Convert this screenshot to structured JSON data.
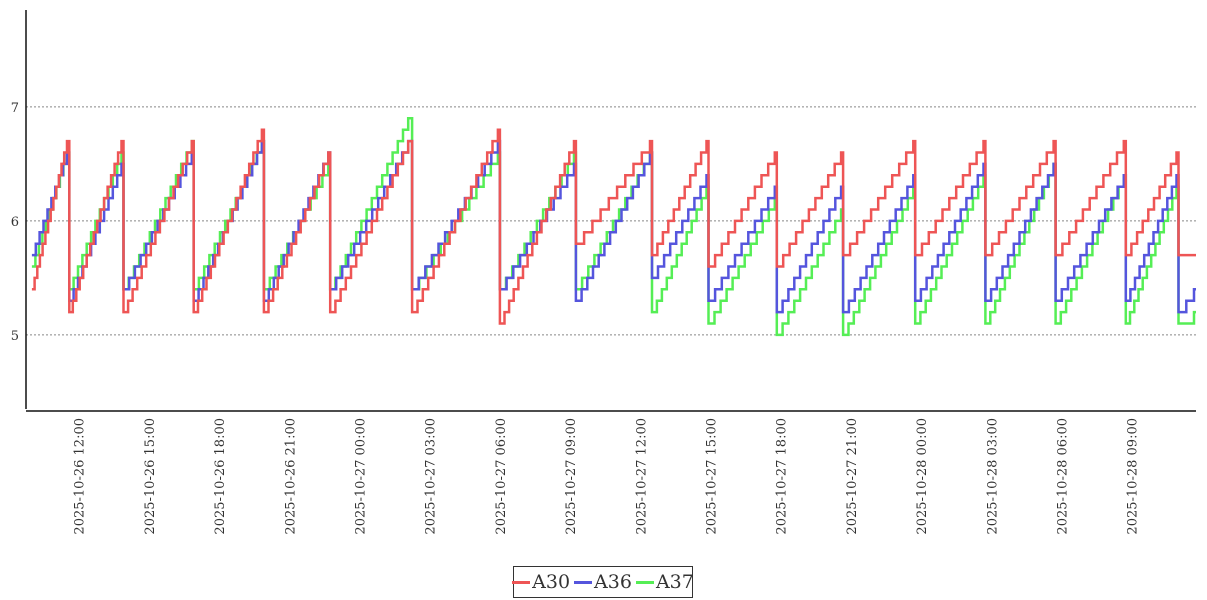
{
  "chart_data": {
    "type": "line",
    "title": "",
    "xlabel": "",
    "ylabel": "",
    "x_range": [
      "2025-10-26 09:45",
      "2025-10-28 11:45"
    ],
    "ylim": [
      4.35,
      7.85
    ],
    "yticks": [
      5,
      6,
      7
    ],
    "ytick_labels": [
      "5",
      "6",
      "7"
    ],
    "xticks": [
      "2025-10-26 12:00",
      "2025-10-26 15:00",
      "2025-10-26 18:00",
      "2025-10-26 21:00",
      "2025-10-27 00:00",
      "2025-10-27 03:00",
      "2025-10-27 06:00",
      "2025-10-27 09:00",
      "2025-10-27 12:00",
      "2025-10-27 15:00",
      "2025-10-27 18:00",
      "2025-10-27 21:00",
      "2025-10-28 00:00",
      "2025-10-28 03:00",
      "2025-10-28 06:00",
      "2025-10-28 09:00"
    ],
    "xtick_labels": [
      "2025-10-26 12:00",
      "2025-10-26 15:00",
      "2025-10-26 18:00",
      "2025-10-26 21:00",
      "2025-10-27 00:00",
      "2025-10-27 03:00",
      "2025-10-27 06:00",
      "2025-10-27 09:00",
      "2025-10-27 12:00",
      "2025-10-27 15:00",
      "2025-10-27 18:00",
      "2025-10-27 21:00",
      "2025-10-28 00:00",
      "2025-10-28 03:00",
      "2025-10-28 06:00",
      "2025-10-28 09:00"
    ],
    "grid": "horizontal dotted",
    "legend_position": "bottom-center",
    "series": [
      {
        "name": "A30",
        "color": "#ee5555",
        "cycles": [
          {
            "start": "2025-10-26 10:00",
            "peak_time": "2025-10-26 11:30",
            "end": "2025-10-26 11:36",
            "low": 5.4,
            "peak": 6.7
          },
          {
            "start": "2025-10-26 11:36",
            "peak_time": "2025-10-26 13:50",
            "end": "2025-10-26 13:55",
            "low": 5.2,
            "peak": 6.7
          },
          {
            "start": "2025-10-26 13:55",
            "peak_time": "2025-10-26 16:50",
            "end": "2025-10-26 16:55",
            "low": 5.2,
            "peak": 6.7
          },
          {
            "start": "2025-10-26 16:55",
            "peak_time": "2025-10-26 19:50",
            "end": "2025-10-26 19:55",
            "low": 5.2,
            "peak": 6.8
          },
          {
            "start": "2025-10-26 19:55",
            "peak_time": "2025-10-26 22:40",
            "end": "2025-10-26 22:45",
            "low": 5.2,
            "peak": 6.6
          },
          {
            "start": "2025-10-26 22:45",
            "peak_time": "2025-10-27 02:05",
            "end": "2025-10-27 02:15",
            "low": 5.2,
            "peak": 6.7
          },
          {
            "start": "2025-10-27 02:15",
            "peak_time": "2025-10-27 05:55",
            "end": "2025-10-27 06:00",
            "low": 5.2,
            "peak": 6.8
          },
          {
            "start": "2025-10-27 06:00",
            "peak_time": "2025-10-27 09:10",
            "end": "2025-10-27 09:15",
            "low": 5.1,
            "peak": 6.7
          },
          {
            "start": "2025-10-27 09:15",
            "peak_time": "2025-10-27 12:25",
            "end": "2025-10-27 12:30",
            "low": 5.8,
            "peak": 6.7
          },
          {
            "start": "2025-10-27 12:30",
            "peak_time": "2025-10-27 14:50",
            "end": "2025-10-27 14:55",
            "low": 5.7,
            "peak": 6.7
          },
          {
            "start": "2025-10-27 14:55",
            "peak_time": "2025-10-27 17:45",
            "end": "2025-10-27 17:50",
            "low": 5.6,
            "peak": 6.6
          },
          {
            "start": "2025-10-27 17:50",
            "peak_time": "2025-10-27 20:35",
            "end": "2025-10-27 20:40",
            "low": 5.6,
            "peak": 6.6
          },
          {
            "start": "2025-10-27 20:40",
            "peak_time": "2025-10-27 23:40",
            "end": "2025-10-27 23:45",
            "low": 5.7,
            "peak": 6.7
          },
          {
            "start": "2025-10-27 23:45",
            "peak_time": "2025-10-28 02:40",
            "end": "2025-10-28 02:45",
            "low": 5.7,
            "peak": 6.7
          },
          {
            "start": "2025-10-28 02:45",
            "peak_time": "2025-10-28 05:40",
            "end": "2025-10-28 05:45",
            "low": 5.7,
            "peak": 6.7
          },
          {
            "start": "2025-10-28 05:45",
            "peak_time": "2025-10-28 08:40",
            "end": "2025-10-28 08:45",
            "low": 5.7,
            "peak": 6.7
          },
          {
            "start": "2025-10-28 08:45",
            "peak_time": "2025-10-28 10:55",
            "end": "2025-10-28 11:00",
            "low": 5.7,
            "peak": 6.6
          },
          {
            "start": "2025-10-28 11:00",
            "peak_time": "2025-10-28 11:00",
            "end": "2025-10-28 11:45",
            "low": 5.7,
            "peak": 5.7
          }
        ]
      },
      {
        "name": "A36",
        "color": "#5555dd",
        "cycles": [
          {
            "start": "2025-10-26 10:00",
            "peak_time": "2025-10-26 11:30",
            "end": "2025-10-26 11:36",
            "low": 5.7,
            "peak": 6.6
          },
          {
            "start": "2025-10-26 11:36",
            "peak_time": "2025-10-26 13:50",
            "end": "2025-10-26 13:55",
            "low": 5.3,
            "peak": 6.5
          },
          {
            "start": "2025-10-26 13:55",
            "peak_time": "2025-10-26 16:50",
            "end": "2025-10-26 16:55",
            "low": 5.4,
            "peak": 6.6
          },
          {
            "start": "2025-10-26 16:55",
            "peak_time": "2025-10-26 19:50",
            "end": "2025-10-26 19:55",
            "low": 5.3,
            "peak": 6.7
          },
          {
            "start": "2025-10-26 19:55",
            "peak_time": "2025-10-26 22:40",
            "end": "2025-10-26 22:45",
            "low": 5.3,
            "peak": 6.6
          },
          {
            "start": "2025-10-26 22:45",
            "peak_time": "2025-10-27 02:05",
            "end": "2025-10-27 02:15",
            "low": 5.4,
            "peak": 6.7
          },
          {
            "start": "2025-10-27 02:15",
            "peak_time": "2025-10-27 05:55",
            "end": "2025-10-27 06:00",
            "low": 5.4,
            "peak": 6.7
          },
          {
            "start": "2025-10-27 06:00",
            "peak_time": "2025-10-27 09:10",
            "end": "2025-10-27 09:15",
            "low": 5.4,
            "peak": 6.5
          },
          {
            "start": "2025-10-27 09:15",
            "peak_time": "2025-10-27 12:25",
            "end": "2025-10-27 12:30",
            "low": 5.3,
            "peak": 6.6
          },
          {
            "start": "2025-10-27 12:30",
            "peak_time": "2025-10-27 14:50",
            "end": "2025-10-27 14:55",
            "low": 5.5,
            "peak": 6.4
          },
          {
            "start": "2025-10-27 14:55",
            "peak_time": "2025-10-27 17:45",
            "end": "2025-10-27 17:50",
            "low": 5.3,
            "peak": 6.3
          },
          {
            "start": "2025-10-27 17:50",
            "peak_time": "2025-10-27 20:35",
            "end": "2025-10-27 20:40",
            "low": 5.2,
            "peak": 6.3
          },
          {
            "start": "2025-10-27 20:40",
            "peak_time": "2025-10-27 23:40",
            "end": "2025-10-27 23:45",
            "low": 5.2,
            "peak": 6.4
          },
          {
            "start": "2025-10-27 23:45",
            "peak_time": "2025-10-28 02:40",
            "end": "2025-10-28 02:45",
            "low": 5.3,
            "peak": 6.5
          },
          {
            "start": "2025-10-28 02:45",
            "peak_time": "2025-10-28 05:40",
            "end": "2025-10-28 05:45",
            "low": 5.3,
            "peak": 6.5
          },
          {
            "start": "2025-10-28 05:45",
            "peak_time": "2025-10-28 08:40",
            "end": "2025-10-28 08:45",
            "low": 5.3,
            "peak": 6.4
          },
          {
            "start": "2025-10-28 08:45",
            "peak_time": "2025-10-28 10:55",
            "end": "2025-10-28 11:00",
            "low": 5.3,
            "peak": 6.4
          },
          {
            "start": "2025-10-28 11:00",
            "peak_time": "2025-10-28 11:40",
            "end": "2025-10-28 11:45",
            "low": 5.2,
            "peak": 5.4
          }
        ]
      },
      {
        "name": "A37",
        "color": "#55ee55",
        "cycles": [
          {
            "start": "2025-10-26 10:00",
            "peak_time": "2025-10-26 11:30",
            "end": "2025-10-26 11:36",
            "low": 5.6,
            "peak": 6.6
          },
          {
            "start": "2025-10-26 11:36",
            "peak_time": "2025-10-26 13:50",
            "end": "2025-10-26 13:55",
            "low": 5.4,
            "peak": 6.6
          },
          {
            "start": "2025-10-26 13:55",
            "peak_time": "2025-10-26 16:50",
            "end": "2025-10-26 16:55",
            "low": 5.4,
            "peak": 6.7
          },
          {
            "start": "2025-10-26 16:55",
            "peak_time": "2025-10-26 19:50",
            "end": "2025-10-26 19:55",
            "low": 5.4,
            "peak": 6.7
          },
          {
            "start": "2025-10-26 19:55",
            "peak_time": "2025-10-26 22:40",
            "end": "2025-10-26 22:45",
            "low": 5.4,
            "peak": 6.5
          },
          {
            "start": "2025-10-26 22:45",
            "peak_time": "2025-10-27 02:05",
            "end": "2025-10-27 02:15",
            "low": 5.4,
            "peak": 6.9
          },
          {
            "start": "2025-10-27 02:15",
            "peak_time": "2025-10-27 05:55",
            "end": "2025-10-27 06:00",
            "low": 5.4,
            "peak": 6.6
          },
          {
            "start": "2025-10-27 06:00",
            "peak_time": "2025-10-27 09:10",
            "end": "2025-10-27 09:15",
            "low": 5.4,
            "peak": 6.6
          },
          {
            "start": "2025-10-27 09:15",
            "peak_time": "2025-10-27 12:25",
            "end": "2025-10-27 12:30",
            "low": 5.4,
            "peak": 6.6
          },
          {
            "start": "2025-10-27 12:30",
            "peak_time": "2025-10-27 14:50",
            "end": "2025-10-27 14:55",
            "low": 5.2,
            "peak": 6.3
          },
          {
            "start": "2025-10-27 14:55",
            "peak_time": "2025-10-27 17:45",
            "end": "2025-10-27 17:50",
            "low": 5.1,
            "peak": 6.2
          },
          {
            "start": "2025-10-27 17:50",
            "peak_time": "2025-10-27 20:35",
            "end": "2025-10-27 20:40",
            "low": 5.0,
            "peak": 6.1
          },
          {
            "start": "2025-10-27 20:40",
            "peak_time": "2025-10-27 23:40",
            "end": "2025-10-27 23:45",
            "low": 5.0,
            "peak": 6.3
          },
          {
            "start": "2025-10-27 23:45",
            "peak_time": "2025-10-28 02:40",
            "end": "2025-10-28 02:45",
            "low": 5.1,
            "peak": 6.4
          },
          {
            "start": "2025-10-28 02:45",
            "peak_time": "2025-10-28 05:40",
            "end": "2025-10-28 05:45",
            "low": 5.1,
            "peak": 6.5
          },
          {
            "start": "2025-10-28 05:45",
            "peak_time": "2025-10-28 08:40",
            "end": "2025-10-28 08:45",
            "low": 5.1,
            "peak": 6.4
          },
          {
            "start": "2025-10-28 08:45",
            "peak_time": "2025-10-28 10:55",
            "end": "2025-10-28 11:00",
            "low": 5.1,
            "peak": 6.3
          },
          {
            "start": "2025-10-28 11:00",
            "peak_time": "2025-10-28 11:40",
            "end": "2025-10-28 11:45",
            "low": 5.1,
            "peak": 5.2
          }
        ]
      }
    ]
  }
}
